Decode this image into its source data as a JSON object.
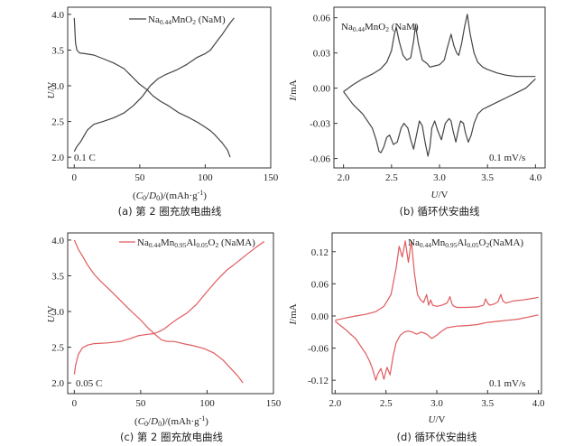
{
  "chart_data": [
    {
      "panel": "a",
      "type": "line",
      "caption": "(a) 第 2 圈充放电曲线",
      "xlabel": "(C₀/D₀)/(mAh·g⁻¹)",
      "ylabel": "U/V",
      "xlim": [
        -5,
        150
      ],
      "ylim": [
        1.85,
        4.1
      ],
      "xticks": [
        0,
        50,
        100,
        150
      ],
      "yticks": [
        2.0,
        2.5,
        3.0,
        3.5,
        4.0
      ],
      "xtick_labels": [
        "0",
        "50",
        "100",
        "150"
      ],
      "ytick_labels": [
        "2.0",
        "2.5",
        "3.0",
        "3.5",
        "4.0"
      ],
      "legend": "Na0.44MnO2 (NaM)",
      "annotation": "0.1 C",
      "color": "#444444",
      "series": [
        {
          "x": [
            0,
            1,
            2,
            4,
            8,
            15,
            22,
            30,
            38,
            44,
            50,
            56,
            60,
            66,
            72,
            80,
            88,
            95,
            100,
            104,
            107,
            110,
            113,
            115,
            117,
            119
          ],
          "y": [
            3.95,
            3.6,
            3.5,
            3.46,
            3.45,
            3.43,
            3.38,
            3.32,
            3.24,
            3.13,
            3.02,
            2.94,
            2.86,
            2.78,
            2.72,
            2.62,
            2.55,
            2.48,
            2.42,
            2.37,
            2.32,
            2.26,
            2.2,
            2.15,
            2.1,
            2.0
          ]
        },
        {
          "x": [
            0,
            2,
            5,
            10,
            15,
            22,
            30,
            38,
            45,
            52,
            58,
            64,
            70,
            78,
            86,
            94,
            100,
            104,
            106,
            108,
            110,
            113,
            116,
            119,
            122
          ],
          "y": [
            2.08,
            2.15,
            2.22,
            2.38,
            2.46,
            2.5,
            2.55,
            2.62,
            2.72,
            2.85,
            3.0,
            3.1,
            3.16,
            3.22,
            3.3,
            3.4,
            3.45,
            3.5,
            3.55,
            3.6,
            3.65,
            3.72,
            3.8,
            3.88,
            3.95
          ]
        }
      ]
    },
    {
      "panel": "b",
      "type": "line",
      "caption": "(b) 循环伏安曲线",
      "xlabel": "U/V",
      "ylabel": "I/mA",
      "xlim": [
        1.9,
        4.1
      ],
      "ylim": [
        -0.068,
        0.069
      ],
      "xticks": [
        2.0,
        2.5,
        3.0,
        3.5,
        4.0
      ],
      "yticks": [
        -0.06,
        -0.03,
        0.0,
        0.03,
        0.06
      ],
      "xtick_labels": [
        "2.0",
        "2.5",
        "3.0",
        "3.5",
        "4.0"
      ],
      "ytick_labels": [
        "-0.06",
        "-0.03",
        "0.00",
        "0.03",
        "0.06"
      ],
      "legend": "Na0.44MnO2 (NaM)",
      "annotation": "0.1 mV/s",
      "color": "#444444",
      "series": [
        {
          "x": [
            2.0,
            2.05,
            2.1,
            2.2,
            2.3,
            2.38,
            2.45,
            2.5,
            2.53,
            2.55,
            2.58,
            2.62,
            2.66,
            2.7,
            2.73,
            2.75,
            2.78,
            2.82,
            2.87,
            2.9,
            2.95,
            3.0,
            3.05,
            3.08,
            3.12,
            3.15,
            3.18,
            3.2,
            3.23,
            3.26,
            3.29,
            3.32,
            3.36,
            3.4,
            3.45,
            3.5,
            3.6,
            3.7,
            3.8,
            3.9,
            4.0
          ],
          "y": [
            -0.003,
            0.0,
            0.003,
            0.008,
            0.012,
            0.016,
            0.022,
            0.032,
            0.046,
            0.052,
            0.04,
            0.028,
            0.024,
            0.026,
            0.04,
            0.054,
            0.038,
            0.024,
            0.021,
            0.018,
            0.019,
            0.02,
            0.024,
            0.034,
            0.046,
            0.036,
            0.03,
            0.028,
            0.038,
            0.052,
            0.063,
            0.046,
            0.03,
            0.022,
            0.018,
            0.016,
            0.013,
            0.011,
            0.01,
            0.01,
            0.01
          ]
        },
        {
          "x": [
            4.0,
            3.9,
            3.8,
            3.7,
            3.6,
            3.5,
            3.45,
            3.4,
            3.36,
            3.33,
            3.3,
            3.27,
            3.25,
            3.22,
            3.2,
            3.17,
            3.14,
            3.12,
            3.1,
            3.06,
            3.02,
            2.98,
            2.95,
            2.92,
            2.9,
            2.88,
            2.85,
            2.82,
            2.79,
            2.76,
            2.73,
            2.7,
            2.67,
            2.63,
            2.6,
            2.56,
            2.52,
            2.48,
            2.45,
            2.42,
            2.39,
            2.37,
            2.34,
            2.3,
            2.2,
            2.1,
            2.0
          ],
          "y": [
            0.008,
            0.0,
            -0.004,
            -0.008,
            -0.012,
            -0.016,
            -0.018,
            -0.022,
            -0.03,
            -0.04,
            -0.046,
            -0.038,
            -0.03,
            -0.028,
            -0.034,
            -0.046,
            -0.036,
            -0.028,
            -0.026,
            -0.03,
            -0.044,
            -0.036,
            -0.028,
            -0.034,
            -0.05,
            -0.058,
            -0.046,
            -0.032,
            -0.028,
            -0.04,
            -0.052,
            -0.044,
            -0.034,
            -0.03,
            -0.034,
            -0.046,
            -0.048,
            -0.04,
            -0.042,
            -0.05,
            -0.055,
            -0.054,
            -0.044,
            -0.034,
            -0.022,
            -0.014,
            -0.003
          ]
        }
      ]
    },
    {
      "panel": "c",
      "type": "line",
      "caption": "(c) 第 2 圈充放电曲线",
      "xlabel": "(C₀/D₀)/(mAh·g⁻¹)",
      "ylabel": "U/V",
      "xlim": [
        -5,
        150
      ],
      "ylim": [
        1.85,
        4.1
      ],
      "xticks": [
        0,
        50,
        100,
        150
      ],
      "yticks": [
        2.0,
        2.5,
        3.0,
        3.5,
        4.0
      ],
      "xtick_labels": [
        "0",
        "50",
        "100",
        "150"
      ],
      "ytick_labels": [
        "2.0",
        "2.5",
        "3.0",
        "3.5",
        "4.0"
      ],
      "legend": "Na0.44Mn0.95Al0.05O2 (NaMA)",
      "annotation": "0.05 C",
      "color": "#e05a5e",
      "series": [
        {
          "x": [
            0,
            3,
            6,
            10,
            15,
            20,
            28,
            35,
            42,
            50,
            56,
            62,
            66,
            70,
            75,
            82,
            90,
            98,
            105,
            112,
            118,
            123,
            127
          ],
          "y": [
            4.0,
            3.87,
            3.78,
            3.65,
            3.52,
            3.42,
            3.28,
            3.15,
            3.02,
            2.88,
            2.76,
            2.66,
            2.6,
            2.58,
            2.58,
            2.55,
            2.52,
            2.48,
            2.42,
            2.32,
            2.2,
            2.1,
            2.0
          ]
        },
        {
          "x": [
            0,
            1,
            3,
            6,
            10,
            15,
            25,
            35,
            42,
            48,
            55,
            60,
            64,
            68,
            72,
            78,
            85,
            92,
            100,
            108,
            115,
            122,
            130,
            137,
            143
          ],
          "y": [
            2.12,
            2.25,
            2.4,
            2.49,
            2.53,
            2.55,
            2.56,
            2.58,
            2.62,
            2.66,
            2.68,
            2.69,
            2.72,
            2.76,
            2.82,
            2.9,
            2.98,
            3.1,
            3.28,
            3.45,
            3.58,
            3.68,
            3.8,
            3.9,
            3.98
          ]
        }
      ]
    },
    {
      "panel": "d",
      "type": "line",
      "caption": "(d) 循环伏安曲线",
      "xlabel": "U/V",
      "ylabel": "I/mA",
      "xlim": [
        1.97,
        4.03
      ],
      "ylim": [
        -0.145,
        0.155
      ],
      "xticks": [
        2.0,
        2.5,
        3.0,
        3.5,
        4.0
      ],
      "yticks": [
        -0.12,
        -0.06,
        0.0,
        0.06,
        0.12
      ],
      "xtick_labels": [
        "2.0",
        "2.5",
        "3.0",
        "3.5",
        "4.0"
      ],
      "ytick_labels": [
        "-0.12",
        "-0.06",
        "0.00",
        "0.06",
        "0.12"
      ],
      "legend": "Na0.44Mn0.95Al0.05O2 (NaMA)",
      "annotation": "0.1 mV/s",
      "color": "#e05a5e",
      "series": [
        {
          "x": [
            2.0,
            2.1,
            2.2,
            2.3,
            2.4,
            2.48,
            2.55,
            2.6,
            2.63,
            2.66,
            2.69,
            2.72,
            2.75,
            2.78,
            2.81,
            2.84,
            2.87,
            2.9,
            2.92,
            2.94,
            2.96,
            3.0,
            3.05,
            3.1,
            3.13,
            3.15,
            3.17,
            3.2,
            3.3,
            3.4,
            3.46,
            3.48,
            3.5,
            3.52,
            3.56,
            3.6,
            3.63,
            3.65,
            3.68,
            3.75,
            3.85,
            3.95,
            4.0
          ],
          "y": [
            -0.008,
            -0.004,
            0.0,
            0.003,
            0.008,
            0.018,
            0.04,
            0.09,
            0.13,
            0.11,
            0.14,
            0.1,
            0.14,
            0.08,
            0.04,
            0.03,
            0.025,
            0.04,
            0.02,
            0.03,
            0.02,
            0.018,
            0.02,
            0.024,
            0.036,
            0.022,
            0.018,
            0.016,
            0.016,
            0.017,
            0.02,
            0.032,
            0.024,
            0.02,
            0.022,
            0.026,
            0.04,
            0.028,
            0.024,
            0.028,
            0.03,
            0.033,
            0.035
          ]
        },
        {
          "x": [
            4.0,
            3.9,
            3.8,
            3.7,
            3.6,
            3.5,
            3.4,
            3.3,
            3.2,
            3.1,
            3.05,
            3.0,
            2.95,
            2.9,
            2.85,
            2.8,
            2.76,
            2.72,
            2.68,
            2.64,
            2.6,
            2.57,
            2.54,
            2.51,
            2.48,
            2.45,
            2.42,
            2.4,
            2.37,
            2.34,
            2.3,
            2.2,
            2.1,
            2.0
          ],
          "y": [
            0.002,
            -0.002,
            -0.006,
            -0.008,
            -0.01,
            -0.012,
            -0.016,
            -0.018,
            -0.019,
            -0.022,
            -0.028,
            -0.036,
            -0.042,
            -0.034,
            -0.03,
            -0.034,
            -0.03,
            -0.028,
            -0.03,
            -0.036,
            -0.05,
            -0.075,
            -0.11,
            -0.096,
            -0.118,
            -0.098,
            -0.108,
            -0.12,
            -0.1,
            -0.085,
            -0.07,
            -0.042,
            -0.025,
            -0.01
          ]
        }
      ]
    }
  ]
}
